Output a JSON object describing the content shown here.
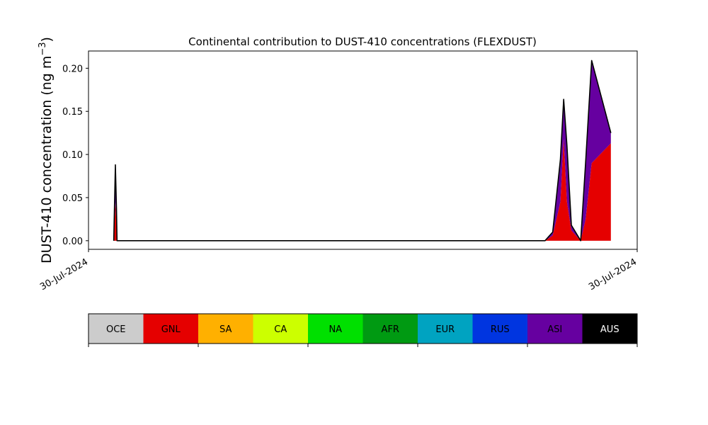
{
  "chart_data": {
    "type": "area",
    "title": "Continental contribution to DUST-410 concentrations (FLEXDUST)",
    "ylabel_main": "DUST-410 concentration (ng m",
    "ylabel_exp": "−3",
    "ylabel_close": ")",
    "xlabel": "",
    "xlim": [
      0,
      100
    ],
    "ylim": [
      -0.01,
      0.22
    ],
    "yticks": [
      0.0,
      0.05,
      0.1,
      0.15,
      0.2
    ],
    "ytick_labels": [
      "0.00",
      "0.05",
      "0.10",
      "0.15",
      "0.20"
    ],
    "xticks": [
      0,
      100
    ],
    "xtick_labels": [
      "30-Jul-2024",
      "30-Jul-2024"
    ],
    "x": [
      4.6,
      4.9,
      5.1,
      5.2,
      51.4,
      83.2,
      84.6,
      86.0,
      86.6,
      87.2,
      88.0,
      89.7,
      90.6,
      91.7,
      95.2
    ],
    "series": [
      {
        "name": "GNL",
        "values": [
          0.0,
          0.045,
          0.02,
          0.0,
          0.0,
          0.0,
          0.006,
          0.045,
          0.118,
          0.045,
          0.012,
          0.0,
          0.025,
          0.09,
          0.113
        ]
      },
      {
        "name": "ASI",
        "values": [
          0.0,
          0.03,
          0.012,
          0.0,
          0.0,
          0.0,
          0.004,
          0.048,
          0.045,
          0.065,
          0.005,
          0.0,
          0.065,
          0.118,
          0.012
        ]
      },
      {
        "name": "AUS",
        "values": [
          0.0,
          0.013,
          0.005,
          0.0,
          0.0,
          0.0,
          0.0,
          0.001,
          0.001,
          0.0,
          0.001,
          0.0,
          0.001,
          0.001,
          0.0
        ]
      }
    ],
    "legend": {
      "placement": "bottom",
      "items": [
        {
          "label": "OCE",
          "color": "#cccccc",
          "text_color": "#000000"
        },
        {
          "label": "GNL",
          "color": "#e50000",
          "text_color": "#000000"
        },
        {
          "label": "SA",
          "color": "#ffb000",
          "text_color": "#000000"
        },
        {
          "label": "CA",
          "color": "#ccff00",
          "text_color": "#000000"
        },
        {
          "label": "NA",
          "color": "#00e000",
          "text_color": "#000000"
        },
        {
          "label": "AFR",
          "color": "#009a12",
          "text_color": "#000000"
        },
        {
          "label": "EUR",
          "color": "#00a3c1",
          "text_color": "#000000"
        },
        {
          "label": "RUS",
          "color": "#0035e0",
          "text_color": "#000000"
        },
        {
          "label": "ASI",
          "color": "#6600a0",
          "text_color": "#000000"
        },
        {
          "label": "AUS",
          "color": "#000000",
          "text_color": "#ffffff"
        }
      ]
    },
    "colors": {
      "total_line": "#000000"
    }
  }
}
